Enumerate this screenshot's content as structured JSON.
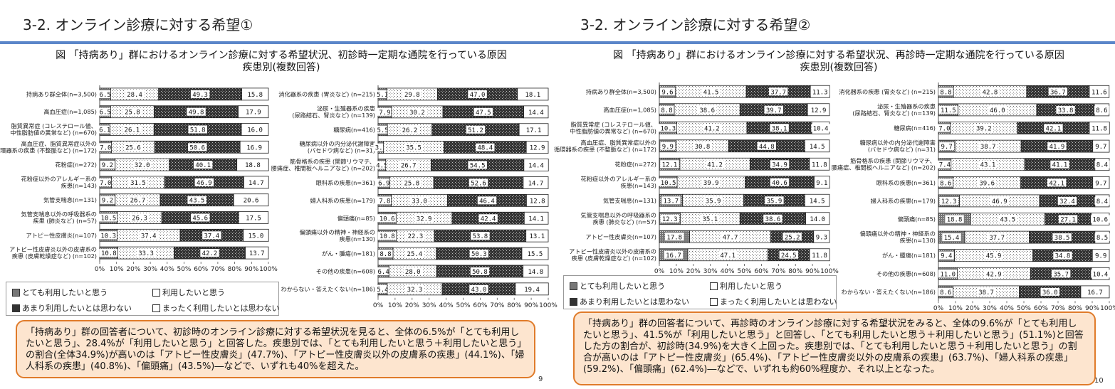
{
  "legend_labels": [
    "とても利用したいと思う",
    "利用したいと思う",
    "あまり利用したいとは思わない",
    "まったく利用したいとは思わない"
  ],
  "x_ticks": [
    "0%",
    "10%",
    "20%",
    "30%",
    "40%",
    "50%",
    "60%",
    "70%",
    "80%",
    "90%",
    "100%"
  ],
  "slides": [
    {
      "title": "3-2. オンライン診療に対する希望①",
      "figure_title_line1": "図 「持病あり」群におけるオンライン診療に対する希望状況、初診時一定期な通院を行っている原因",
      "figure_title_line2": "疾患別(複数回答)",
      "page_number": "9",
      "summary": "「持病あり」群の回答者について、初診時のオンライン診療に対する希望状況を見ると、全体の6.5%が「とても利用したいと思う」、28.4%が「利用したいと思う」と回答した。疾患別では、「とても利用したいと思う＋利用したいと思う」の割合(全体34.9%)が高いのは「アトピー性皮膚炎」(47.7%)、「アトピー性皮膚炎以外の皮膚系の疾患」(44.1%)、「婦人科系の疾患」(40.8%)、「偏頭痛」(43.5%)―などで、いずれも40%を超えた。"
    },
    {
      "title": "3-2. オンライン診療に対する希望②",
      "figure_title_line1": "図 「持病あり」群におけるオンライン診療に対する希望状況、再診時一定期な通院を行っている原因",
      "figure_title_line2": "疾患別(複数回答)",
      "page_number": "10",
      "summary": "「持病あり」群の回答者について、再診時のオンライン診療に対する希望状況をみると、全体の9.6%が「とても利用したいと思う」、41.5%が「利用したいと思う」と回答し、「とても利用したいと思う＋利用したいと思う」(51.1%)と回答した方の割合が、初診時(34.9%)を大きく上回った。疾患別では、「とても利用したいと思う＋利用したいと思う」の割合が高いのは「アトピー性皮膚炎」(65.4%)、「アトピー性皮膚炎以外の皮膚系の疾患」(63.7%)、「婦人科系の疾患」(59.2%)、「偏頭痛」(62.4%)―などで、いずれも約60%程度か、それ以上となった。"
    }
  ],
  "chart_data": [
    {
      "type": "bar",
      "stacked": true,
      "orientation": "horizontal",
      "xlim": [
        0,
        100
      ],
      "series_names": [
        "とても利用したいと思う",
        "利用したいと思う",
        "あまり利用したいとは思わない",
        "まったく利用したいとは思わない"
      ],
      "categories": [
        "持病あり群全体(n=3,500)",
        "高血圧症(n=1,085)",
        "脂質異常症 (コレステロール値、|中性脂肪値の異常など) (n=670)",
        "高血圧症、脂質異常症以外の|循環器系の疾患 (不整脈など) (n=172)",
        "花粉症(n=272)",
        "花粉症以外のアレルギー系の|疾患(n=143)",
        "気管支喘息(n=131)",
        "気管支喘息以外の呼吸器系の|疾患 (肺炎など) (n=57)",
        "アトピー性皮膚炎(n=107)",
        "アトピー性皮膚炎以外の皮膚系の|疾患 (皮膚乾燥症など) (n=102)"
      ],
      "values": [
        [
          6.5,
          28.4,
          49.3,
          15.8
        ],
        [
          6.5,
          25.8,
          49.8,
          17.9
        ],
        [
          6.1,
          26.1,
          51.8,
          16.0
        ],
        [
          7.0,
          25.6,
          50.6,
          16.9
        ],
        [
          9.2,
          32.0,
          40.1,
          18.8
        ],
        [
          7.0,
          31.5,
          46.9,
          14.7
        ],
        [
          9.2,
          26.7,
          43.5,
          20.6
        ],
        [
          10.5,
          26.3,
          45.6,
          17.5
        ],
        [
          10.3,
          37.4,
          37.4,
          15.0
        ],
        [
          10.8,
          33.3,
          42.2,
          13.7
        ]
      ]
    },
    {
      "type": "bar",
      "stacked": true,
      "orientation": "horizontal",
      "xlim": [
        0,
        100
      ],
      "series_names": [
        "とても利用したいと思う",
        "利用したいと思う",
        "あまり利用したいとは思わない",
        "まったく利用したいとは思わない"
      ],
      "categories": [
        "消化器系の疾患 (胃炎など) (n=215)",
        "泌尿・生殖器系の疾患|(尿路結石、腎炎など) (n=139)",
        "糖尿病(n=416)",
        "糖尿病以外の内分泌代謝障害|(バセドウ病など) (n=31)",
        "筋骨格系の疾患 (関節リウマチ、|腰痛症、椎間板ヘルニアなど) (n=202)",
        "眼科系の疾患(n=361)",
        "婦人科系の疾患(n=179)",
        "偏頭痛(n=85)",
        "偏頭痛以外の精神・神経系の|疾患(n=130)",
        "がん・腫瘍(n=181)",
        "その他の疾患(n=608)",
        "わからない・答えたくない(n=186)"
      ],
      "values": [
        [
          5.1,
          29.8,
          47.0,
          18.1
        ],
        [
          7.9,
          30.2,
          47.5,
          14.4
        ],
        [
          5.5,
          26.2,
          51.2,
          17.1
        ],
        [
          3.2,
          35.5,
          48.4,
          12.9
        ],
        [
          4.5,
          26.7,
          54.5,
          14.4
        ],
        [
          6.9,
          25.8,
          52.6,
          14.7
        ],
        [
          7.8,
          33.0,
          46.4,
          12.8
        ],
        [
          10.6,
          32.9,
          42.4,
          14.1
        ],
        [
          10.8,
          22.3,
          53.8,
          13.1
        ],
        [
          8.8,
          25.4,
          50.3,
          15.5
        ],
        [
          6.4,
          28.0,
          50.8,
          14.8
        ],
        [
          5.4,
          32.3,
          43.0,
          19.4
        ]
      ]
    },
    {
      "type": "bar",
      "stacked": true,
      "orientation": "horizontal",
      "xlim": [
        0,
        100
      ],
      "series_names": [
        "とても利用したいと思う",
        "利用したいと思う",
        "あまり利用したいとは思わない",
        "まったく利用したいとは思わない"
      ],
      "categories": [
        "持病あり群全体(n=3,500)",
        "高血圧症(n=1,085)",
        "脂質異常症 (コレステロール値、|中性脂肪値の異常など) (n=670)",
        "高血圧症、脂質異常症以外の|循環器系の疾患 (不整脈など) (n=172)",
        "花粉症(n=272)",
        "花粉症以外のアレルギー系の|疾患(n=143)",
        "気管支喘息(n=131)",
        "気管支喘息以外の呼吸器系の|疾患 (肺炎など) (n=57)",
        "アトピー性皮膚炎(n=107)",
        "アトピー性皮膚炎以外の皮膚系の|疾患 (皮膚乾燥症など) (n=102)"
      ],
      "values": [
        [
          9.6,
          41.5,
          37.7,
          11.3
        ],
        [
          8.8,
          38.6,
          39.7,
          12.9
        ],
        [
          10.3,
          41.2,
          38.1,
          10.4
        ],
        [
          9.9,
          30.8,
          44.8,
          14.5
        ],
        [
          12.1,
          41.2,
          34.9,
          11.8
        ],
        [
          10.5,
          39.9,
          40.6,
          9.1
        ],
        [
          13.7,
          35.9,
          35.9,
          14.5
        ],
        [
          12.3,
          35.1,
          38.6,
          14.0
        ],
        [
          17.8,
          47.7,
          25.2,
          9.3
        ],
        [
          16.7,
          47.1,
          24.5,
          11.8
        ]
      ]
    },
    {
      "type": "bar",
      "stacked": true,
      "orientation": "horizontal",
      "xlim": [
        0,
        100
      ],
      "series_names": [
        "とても利用したいと思う",
        "利用したいと思う",
        "あまり利用したいとは思わない",
        "まったく利用したいとは思わない"
      ],
      "categories": [
        "消化器系の疾患 (胃炎など) (n=215)",
        "泌尿・生殖器系の疾患|(尿路結石、腎炎など) (n=139)",
        "糖尿病(n=416)",
        "糖尿病以外の内分泌代謝障害|(バセドウ病など) (n=31)",
        "筋骨格系の疾患 (関節リウマチ、|腰痛症、椎間板ヘルニアなど) (n=202)",
        "眼科系の疾患(n=361)",
        "婦人科系の疾患(n=179)",
        "偏頭痛(n=85)",
        "偏頭痛以外の精神・神経系の|疾患(n=130)",
        "がん・腫瘍(n=181)",
        "その他の疾患(n=608)",
        "わからない・答えたくない(n=186)"
      ],
      "values": [
        [
          8.8,
          42.8,
          36.7,
          11.6
        ],
        [
          11.5,
          46.0,
          33.8,
          8.6
        ],
        [
          7.0,
          39.2,
          42.1,
          11.8
        ],
        [
          9.7,
          38.7,
          41.9,
          9.7
        ],
        [
          7.4,
          43.1,
          41.1,
          8.4
        ],
        [
          8.6,
          39.6,
          42.1,
          9.7
        ],
        [
          12.3,
          46.9,
          32.4,
          8.4
        ],
        [
          18.8,
          43.5,
          27.1,
          10.6
        ],
        [
          15.4,
          37.7,
          38.5,
          8.5
        ],
        [
          9.4,
          45.9,
          34.8,
          9.9
        ],
        [
          11.0,
          42.9,
          35.7,
          10.4
        ],
        [
          8.6,
          38.7,
          36.0,
          16.7
        ]
      ]
    }
  ]
}
